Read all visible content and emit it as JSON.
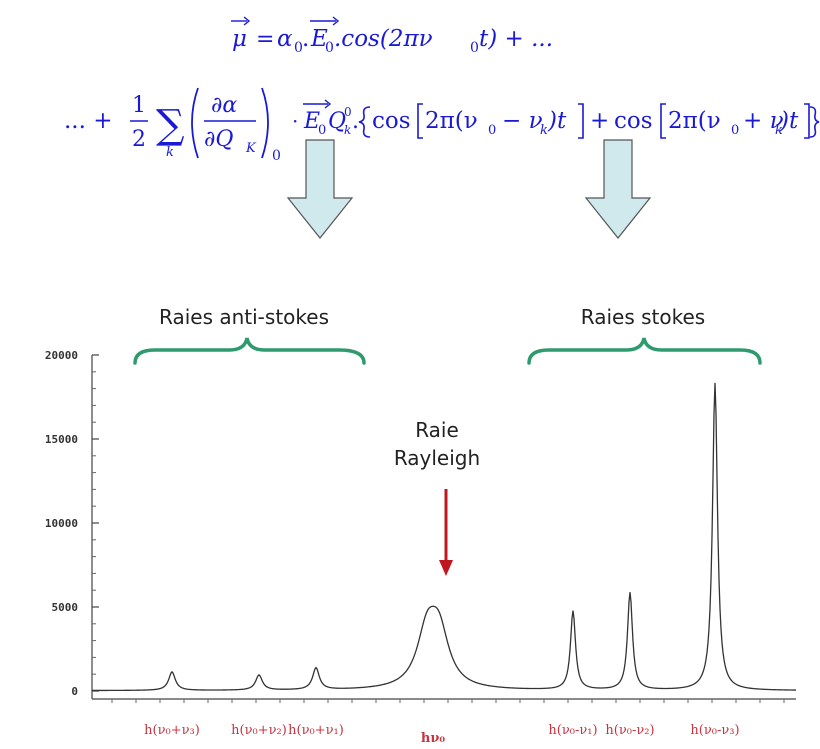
{
  "equation": {
    "line1": {
      "mu": "μ",
      "eq": "=",
      "alpha0": "α",
      "sub0": "0",
      "dot1": ".",
      "E": "E",
      "dotcos": ".cos(2πν",
      "t_close": "t) + ..."
    },
    "line2": {
      "lead": "... +",
      "one": "1",
      "two": "2",
      "sum": "∑",
      "k": "k",
      "dalpha": "∂α",
      "dQ": "∂Q",
      "Ksub": "K",
      "zero": "0",
      "cdot": "·",
      "E": "E",
      "Qk": "Q",
      "zsup": "0",
      "ksub": "k",
      "cos1": "cos",
      "arg1": "2π(ν",
      "minus": "− ν",
      "t1": ")t",
      "plus": "+",
      "cos2": "cos",
      "arg2": "2π(ν",
      "plusnu": "+ ν",
      "t2": ")t"
    }
  },
  "colors": {
    "equation": "#1a1ad6",
    "arrow_fill": "#cfe9ec",
    "brace": "#2e9a6e",
    "rayleigh_arrow": "#c0161f",
    "curve": "#333333",
    "peak_label": "#c8343f"
  },
  "chart_data": {
    "type": "line",
    "annotations": {
      "anti_stokes": "Raies anti-stokes",
      "stokes": "Raies stokes",
      "rayleigh_line1": "Raie",
      "rayleigh_line2": "Rayleigh"
    },
    "ylim": [
      0,
      20000
    ],
    "yticks": [
      "20000",
      "15000",
      "10000",
      "5000",
      "0"
    ],
    "ytick_values": [
      20000,
      15000,
      10000,
      5000,
      0
    ],
    "peaks": [
      {
        "label": "h(ν₀+ν₃)",
        "x": 1,
        "y": 1100
      },
      {
        "label": "h(ν₀+ν₂)",
        "x": 2,
        "y": 900
      },
      {
        "label": "h(ν₀+ν₁)",
        "x": 3,
        "y": 1300
      },
      {
        "label": "hν₀",
        "x": 4,
        "y": 5700
      },
      {
        "label": "h(ν₀-ν₁)",
        "x": 5,
        "y": 4700
      },
      {
        "label": "h(ν₀-ν₂)",
        "x": 6,
        "y": 5800
      },
      {
        "label": "h(ν₀-ν₃)",
        "x": 7,
        "y": 18300
      }
    ]
  }
}
